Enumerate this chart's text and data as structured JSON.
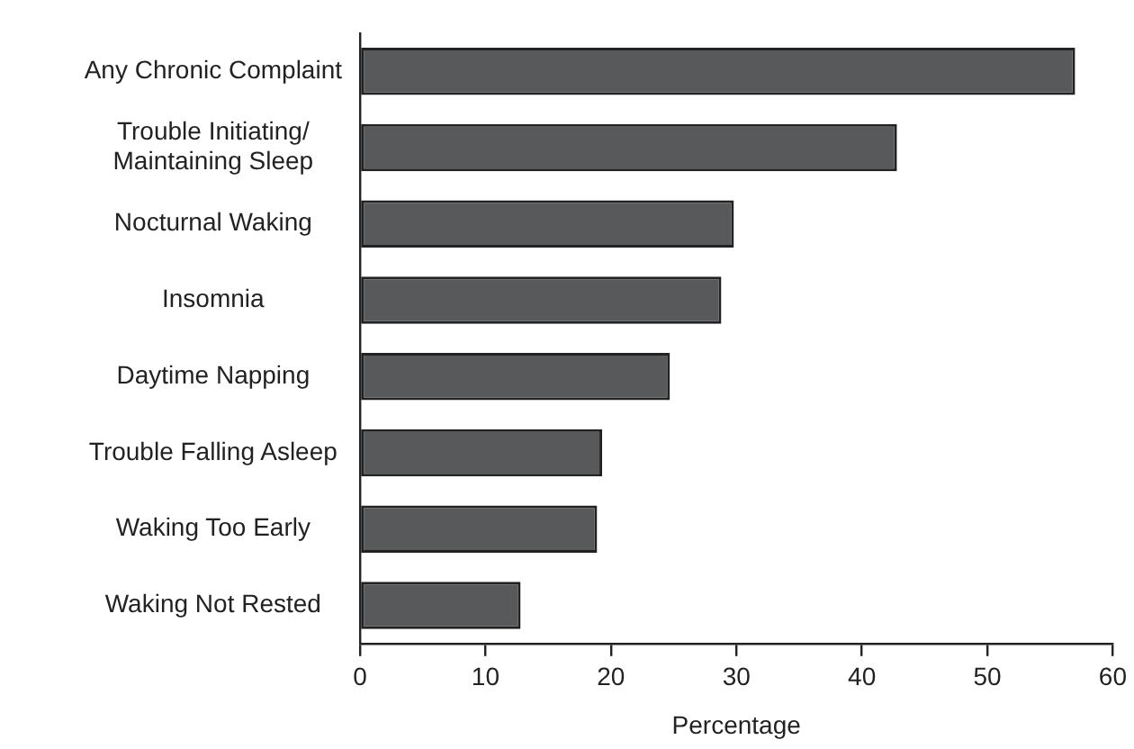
{
  "chart_data": {
    "type": "bar",
    "orientation": "horizontal",
    "xlabel": "Percentage",
    "categories": [
      "Any Chronic Complaint",
      "Trouble Initiating/\nMaintaining Sleep",
      "Nocturnal Waking",
      "Insomnia",
      "Daytime Napping",
      "Trouble Falling Asleep",
      "Waking Too Early",
      "Waking Not Rested"
    ],
    "values": [
      57,
      42.8,
      29.8,
      28.8,
      24.7,
      19.3,
      18.9,
      12.8
    ],
    "color": "#58595b",
    "xlim": [
      0,
      60
    ],
    "xticks": [
      0,
      10,
      20,
      30,
      40,
      50,
      60
    ],
    "grid": false,
    "legend": false
  }
}
